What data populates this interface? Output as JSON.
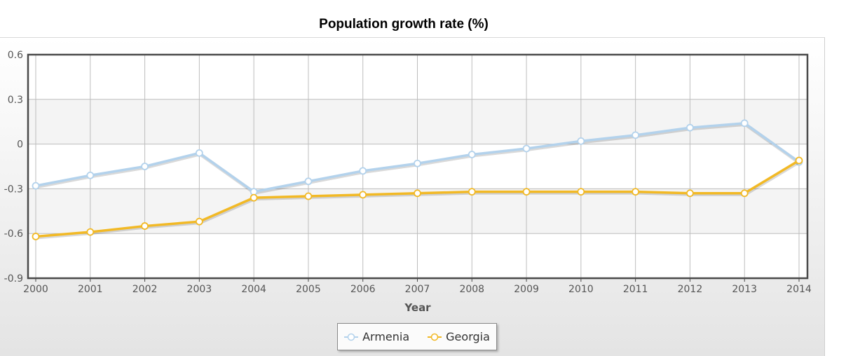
{
  "chart_data": {
    "type": "line",
    "title": "Population growth rate (%)",
    "xlabel": "Year",
    "ylabel": "",
    "categories": [
      "2000",
      "2001",
      "2002",
      "2003",
      "2004",
      "2005",
      "2006",
      "2007",
      "2008",
      "2009",
      "2010",
      "2011",
      "2012",
      "2013",
      "2014"
    ],
    "y_ticks": [
      0.6,
      0.3,
      0,
      -0.3,
      -0.6,
      -0.9
    ],
    "ylim": [
      -0.9,
      0.6
    ],
    "grid": true,
    "legend_position": "bottom-center",
    "series": [
      {
        "name": "Armenia",
        "color": "#b3d2ec",
        "values": [
          -0.28,
          -0.21,
          -0.15,
          -0.06,
          -0.32,
          -0.25,
          -0.18,
          -0.13,
          -0.07,
          -0.03,
          0.02,
          0.06,
          0.11,
          0.14,
          -0.12
        ]
      },
      {
        "name": "Georgia",
        "color": "#f2b925",
        "values": [
          -0.62,
          -0.59,
          -0.55,
          -0.52,
          -0.36,
          -0.35,
          -0.34,
          -0.33,
          -0.32,
          -0.32,
          -0.32,
          -0.32,
          -0.33,
          -0.33,
          -0.11
        ]
      }
    ]
  }
}
